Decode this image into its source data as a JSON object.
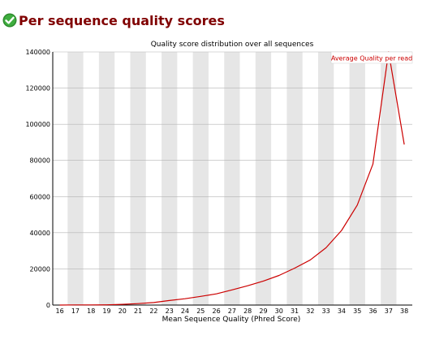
{
  "header": {
    "title": "Per sequence quality scores",
    "status_icon": "pass-check-icon",
    "status_color": "#2e8b2e"
  },
  "chart_data": {
    "type": "line",
    "title": "Quality score distribution over all sequences",
    "xlabel": "Mean Sequence Quality (Phred Score)",
    "ylabel": "",
    "categories": [
      "16",
      "17",
      "18",
      "19",
      "20",
      "21",
      "22",
      "23",
      "24",
      "25",
      "26",
      "27",
      "28",
      "29",
      "30",
      "31",
      "32",
      "33",
      "34",
      "35",
      "36",
      "37",
      "38"
    ],
    "series": [
      {
        "name": "Average Quality per read",
        "color": "#cc0000",
        "values": [
          0,
          100,
          100,
          150,
          400,
          800,
          1400,
          2500,
          3500,
          4800,
          6200,
          8400,
          10700,
          13300,
          16400,
          20400,
          25000,
          31700,
          41300,
          55300,
          78000,
          140000,
          88800
        ]
      }
    ],
    "ylim": [
      0,
      140000
    ],
    "yticks": [
      "0",
      "20000",
      "40000",
      "60000",
      "80000",
      "100000",
      "120000",
      "140000"
    ],
    "grid": true,
    "band_color": "#e6e6e6",
    "legend_position": "top-right"
  }
}
